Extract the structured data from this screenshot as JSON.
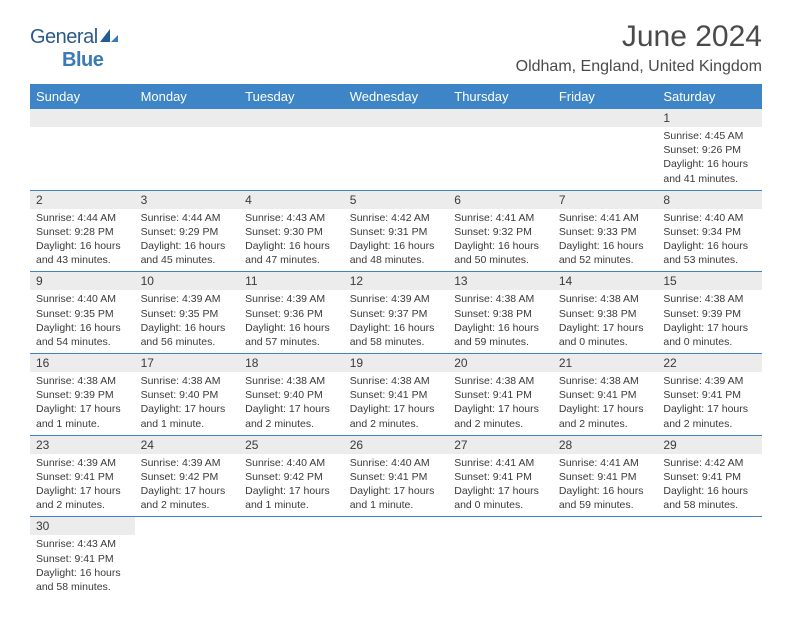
{
  "logo": {
    "word1": "General",
    "word2": "Blue"
  },
  "title": "June 2024",
  "location": "Oldham, England, United Kingdom",
  "colors": {
    "header_bg": "#3d85c6",
    "header_text": "#ffffff",
    "daynum_bg": "#ececec",
    "text": "#3a3a3a",
    "logo1": "#2b5a8a",
    "logo2": "#3a7ab5",
    "row_border": "#3d85c6"
  },
  "typography": {
    "title_fontsize": 30,
    "location_fontsize": 16,
    "weekday_fontsize": 13,
    "daynum_fontsize": 12,
    "cell_fontsize": 10.5
  },
  "weekdays": [
    "Sunday",
    "Monday",
    "Tuesday",
    "Wednesday",
    "Thursday",
    "Friday",
    "Saturday"
  ],
  "weeks": [
    [
      null,
      null,
      null,
      null,
      null,
      null,
      {
        "n": "1",
        "sr": "Sunrise: 4:45 AM",
        "ss": "Sunset: 9:26 PM",
        "d1": "Daylight: 16 hours",
        "d2": "and 41 minutes."
      }
    ],
    [
      {
        "n": "2",
        "sr": "Sunrise: 4:44 AM",
        "ss": "Sunset: 9:28 PM",
        "d1": "Daylight: 16 hours",
        "d2": "and 43 minutes."
      },
      {
        "n": "3",
        "sr": "Sunrise: 4:44 AM",
        "ss": "Sunset: 9:29 PM",
        "d1": "Daylight: 16 hours",
        "d2": "and 45 minutes."
      },
      {
        "n": "4",
        "sr": "Sunrise: 4:43 AM",
        "ss": "Sunset: 9:30 PM",
        "d1": "Daylight: 16 hours",
        "d2": "and 47 minutes."
      },
      {
        "n": "5",
        "sr": "Sunrise: 4:42 AM",
        "ss": "Sunset: 9:31 PM",
        "d1": "Daylight: 16 hours",
        "d2": "and 48 minutes."
      },
      {
        "n": "6",
        "sr": "Sunrise: 4:41 AM",
        "ss": "Sunset: 9:32 PM",
        "d1": "Daylight: 16 hours",
        "d2": "and 50 minutes."
      },
      {
        "n": "7",
        "sr": "Sunrise: 4:41 AM",
        "ss": "Sunset: 9:33 PM",
        "d1": "Daylight: 16 hours",
        "d2": "and 52 minutes."
      },
      {
        "n": "8",
        "sr": "Sunrise: 4:40 AM",
        "ss": "Sunset: 9:34 PM",
        "d1": "Daylight: 16 hours",
        "d2": "and 53 minutes."
      }
    ],
    [
      {
        "n": "9",
        "sr": "Sunrise: 4:40 AM",
        "ss": "Sunset: 9:35 PM",
        "d1": "Daylight: 16 hours",
        "d2": "and 54 minutes."
      },
      {
        "n": "10",
        "sr": "Sunrise: 4:39 AM",
        "ss": "Sunset: 9:35 PM",
        "d1": "Daylight: 16 hours",
        "d2": "and 56 minutes."
      },
      {
        "n": "11",
        "sr": "Sunrise: 4:39 AM",
        "ss": "Sunset: 9:36 PM",
        "d1": "Daylight: 16 hours",
        "d2": "and 57 minutes."
      },
      {
        "n": "12",
        "sr": "Sunrise: 4:39 AM",
        "ss": "Sunset: 9:37 PM",
        "d1": "Daylight: 16 hours",
        "d2": "and 58 minutes."
      },
      {
        "n": "13",
        "sr": "Sunrise: 4:38 AM",
        "ss": "Sunset: 9:38 PM",
        "d1": "Daylight: 16 hours",
        "d2": "and 59 minutes."
      },
      {
        "n": "14",
        "sr": "Sunrise: 4:38 AM",
        "ss": "Sunset: 9:38 PM",
        "d1": "Daylight: 17 hours",
        "d2": "and 0 minutes."
      },
      {
        "n": "15",
        "sr": "Sunrise: 4:38 AM",
        "ss": "Sunset: 9:39 PM",
        "d1": "Daylight: 17 hours",
        "d2": "and 0 minutes."
      }
    ],
    [
      {
        "n": "16",
        "sr": "Sunrise: 4:38 AM",
        "ss": "Sunset: 9:39 PM",
        "d1": "Daylight: 17 hours",
        "d2": "and 1 minute."
      },
      {
        "n": "17",
        "sr": "Sunrise: 4:38 AM",
        "ss": "Sunset: 9:40 PM",
        "d1": "Daylight: 17 hours",
        "d2": "and 1 minute."
      },
      {
        "n": "18",
        "sr": "Sunrise: 4:38 AM",
        "ss": "Sunset: 9:40 PM",
        "d1": "Daylight: 17 hours",
        "d2": "and 2 minutes."
      },
      {
        "n": "19",
        "sr": "Sunrise: 4:38 AM",
        "ss": "Sunset: 9:41 PM",
        "d1": "Daylight: 17 hours",
        "d2": "and 2 minutes."
      },
      {
        "n": "20",
        "sr": "Sunrise: 4:38 AM",
        "ss": "Sunset: 9:41 PM",
        "d1": "Daylight: 17 hours",
        "d2": "and 2 minutes."
      },
      {
        "n": "21",
        "sr": "Sunrise: 4:38 AM",
        "ss": "Sunset: 9:41 PM",
        "d1": "Daylight: 17 hours",
        "d2": "and 2 minutes."
      },
      {
        "n": "22",
        "sr": "Sunrise: 4:39 AM",
        "ss": "Sunset: 9:41 PM",
        "d1": "Daylight: 17 hours",
        "d2": "and 2 minutes."
      }
    ],
    [
      {
        "n": "23",
        "sr": "Sunrise: 4:39 AM",
        "ss": "Sunset: 9:41 PM",
        "d1": "Daylight: 17 hours",
        "d2": "and 2 minutes."
      },
      {
        "n": "24",
        "sr": "Sunrise: 4:39 AM",
        "ss": "Sunset: 9:42 PM",
        "d1": "Daylight: 17 hours",
        "d2": "and 2 minutes."
      },
      {
        "n": "25",
        "sr": "Sunrise: 4:40 AM",
        "ss": "Sunset: 9:42 PM",
        "d1": "Daylight: 17 hours",
        "d2": "and 1 minute."
      },
      {
        "n": "26",
        "sr": "Sunrise: 4:40 AM",
        "ss": "Sunset: 9:41 PM",
        "d1": "Daylight: 17 hours",
        "d2": "and 1 minute."
      },
      {
        "n": "27",
        "sr": "Sunrise: 4:41 AM",
        "ss": "Sunset: 9:41 PM",
        "d1": "Daylight: 17 hours",
        "d2": "and 0 minutes."
      },
      {
        "n": "28",
        "sr": "Sunrise: 4:41 AM",
        "ss": "Sunset: 9:41 PM",
        "d1": "Daylight: 16 hours",
        "d2": "and 59 minutes."
      },
      {
        "n": "29",
        "sr": "Sunrise: 4:42 AM",
        "ss": "Sunset: 9:41 PM",
        "d1": "Daylight: 16 hours",
        "d2": "and 58 minutes."
      }
    ],
    [
      {
        "n": "30",
        "sr": "Sunrise: 4:43 AM",
        "ss": "Sunset: 9:41 PM",
        "d1": "Daylight: 16 hours",
        "d2": "and 58 minutes."
      },
      null,
      null,
      null,
      null,
      null,
      null
    ]
  ]
}
